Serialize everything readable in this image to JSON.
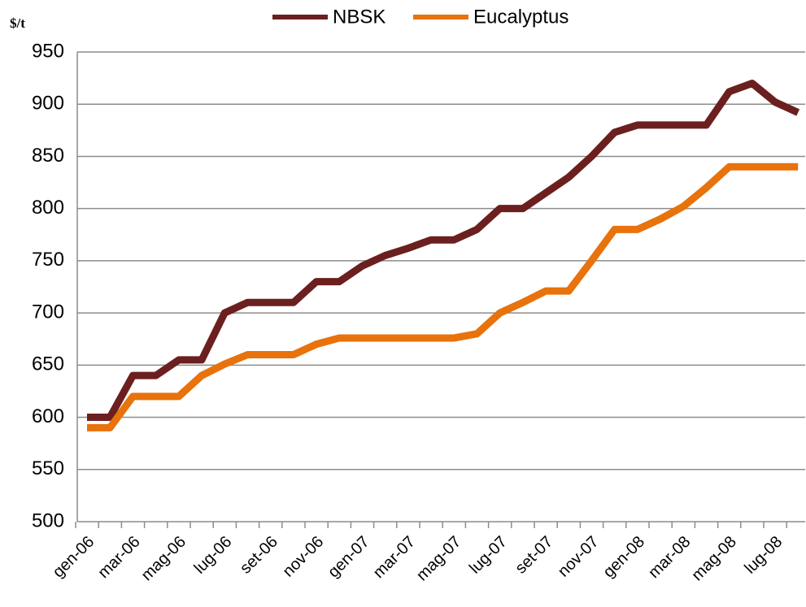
{
  "chart_data": {
    "type": "line",
    "y_label": "$/t",
    "categories": [
      "gen-06",
      null,
      "mar-06",
      null,
      "mag-06",
      null,
      "lug-06",
      null,
      "set-06",
      null,
      "nov-06",
      null,
      "gen-07",
      null,
      "mar-07",
      null,
      "mag-07",
      null,
      "lug-07",
      null,
      "set-07",
      null,
      "nov-07",
      null,
      "gen-08",
      null,
      "mar-08",
      null,
      "mag-08",
      null,
      "lug-08",
      null
    ],
    "series": [
      {
        "name": "NBSK",
        "color": "#6b1f1f",
        "values": [
          600,
          600,
          640,
          640,
          655,
          655,
          700,
          710,
          710,
          710,
          730,
          730,
          745,
          755,
          762,
          770,
          770,
          780,
          800,
          800,
          815,
          830,
          850,
          873,
          880,
          880,
          880,
          880,
          912,
          920,
          902,
          892
        ]
      },
      {
        "name": "Eucalyptus",
        "color": "#e8720c",
        "values": [
          590,
          590,
          620,
          620,
          620,
          640,
          651,
          660,
          660,
          660,
          670,
          676,
          676,
          676,
          676,
          676,
          676,
          680,
          700,
          710,
          721,
          721,
          750,
          780,
          780,
          790,
          802,
          820,
          840,
          840,
          840,
          840
        ]
      }
    ],
    "ylim": [
      500,
      950
    ],
    "yticks": [
      500,
      550,
      600,
      650,
      700,
      750,
      800,
      850,
      900,
      950
    ],
    "grid": true,
    "legend": "top"
  }
}
